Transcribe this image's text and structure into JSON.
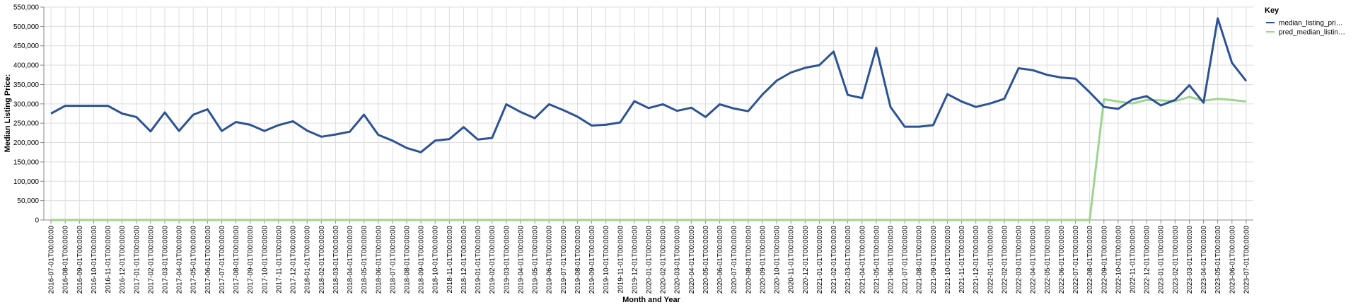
{
  "chart_data": {
    "type": "line",
    "xlabel": "Month and Year",
    "ylabel": "Median Listing Price:",
    "ylim": [
      0,
      550000
    ],
    "yticks": [
      "0",
      "50,000",
      "100,000",
      "150,000",
      "200,000",
      "250,000",
      "300,000",
      "350,000",
      "400,000",
      "450,000",
      "500,000",
      "550,000"
    ],
    "grid": true,
    "legend": {
      "title": "Key",
      "placement": "top-right"
    },
    "x": [
      "2016-07-01T00:00:00",
      "2016-08-01T00:00:00",
      "2016-09-01T00:00:00",
      "2016-10-01T00:00:00",
      "2016-11-01T00:00:00",
      "2016-12-01T00:00:00",
      "2017-01-01T00:00:00",
      "2017-02-01T00:00:00",
      "2017-03-01T00:00:00",
      "2017-04-01T00:00:00",
      "2017-05-01T00:00:00",
      "2017-06-01T00:00:00",
      "2017-07-01T00:00:00",
      "2017-08-01T00:00:00",
      "2017-09-01T00:00:00",
      "2017-10-01T00:00:00",
      "2017-11-01T00:00:00",
      "2017-12-01T00:00:00",
      "2018-01-01T00:00:00",
      "2018-02-01T00:00:00",
      "2018-03-01T00:00:00",
      "2018-04-01T00:00:00",
      "2018-05-01T00:00:00",
      "2018-06-01T00:00:00",
      "2018-07-01T00:00:00",
      "2018-08-01T00:00:00",
      "2018-09-01T00:00:00",
      "2018-10-01T00:00:00",
      "2018-11-01T00:00:00",
      "2018-12-01T00:00:00",
      "2019-01-01T00:00:00",
      "2019-02-01T00:00:00",
      "2019-03-01T00:00:00",
      "2019-04-01T00:00:00",
      "2019-05-01T00:00:00",
      "2019-06-01T00:00:00",
      "2019-07-01T00:00:00",
      "2019-08-01T00:00:00",
      "2019-09-01T00:00:00",
      "2019-10-01T00:00:00",
      "2019-11-01T00:00:00",
      "2019-12-01T00:00:00",
      "2020-01-01T00:00:00",
      "2020-02-01T00:00:00",
      "2020-03-01T00:00:00",
      "2020-04-01T00:00:00",
      "2020-05-01T00:00:00",
      "2020-06-01T00:00:00",
      "2020-07-01T00:00:00",
      "2020-08-01T00:00:00",
      "2020-09-01T00:00:00",
      "2020-10-01T00:00:00",
      "2020-11-01T00:00:00",
      "2020-12-01T00:00:00",
      "2021-01-01T00:00:00",
      "2021-02-01T00:00:00",
      "2021-03-01T00:00:00",
      "2021-04-01T00:00:00",
      "2021-05-01T00:00:00",
      "2021-06-01T00:00:00",
      "2021-07-01T00:00:00",
      "2021-08-01T00:00:00",
      "2021-09-01T00:00:00",
      "2021-10-01T00:00:00",
      "2021-11-01T00:00:00",
      "2021-12-01T00:00:00",
      "2022-01-01T00:00:00",
      "2022-02-01T00:00:00",
      "2022-03-01T00:00:00",
      "2022-04-01T00:00:00",
      "2022-05-01T00:00:00",
      "2022-06-01T00:00:00",
      "2022-07-01T00:00:00",
      "2022-08-01T00:00:00",
      "2022-09-01T00:00:00",
      "2022-10-01T00:00:00",
      "2022-11-01T00:00:00",
      "2022-12-01T00:00:00",
      "2023-01-01T00:00:00",
      "2023-02-01T00:00:00",
      "2023-03-01T00:00:00",
      "2023-04-01T00:00:00",
      "2023-05-01T00:00:00",
      "2023-06-01T00:00:00",
      "2023-07-01T00:00:00"
    ],
    "series": [
      {
        "name": "median_listing_pri…",
        "color": "#2c5296",
        "values": [
          275000,
          295000,
          295000,
          295000,
          295000,
          275000,
          266000,
          229000,
          278000,
          230000,
          272000,
          286000,
          230000,
          253000,
          246000,
          230000,
          245000,
          255000,
          231000,
          215000,
          221000,
          228000,
          272000,
          220000,
          205000,
          186000,
          175000,
          205000,
          209000,
          240000,
          208000,
          212000,
          299000,
          279000,
          263000,
          299000,
          284000,
          267000,
          244000,
          246000,
          252000,
          307000,
          289000,
          299000,
          282000,
          290000,
          266000,
          299000,
          288000,
          281000,
          324000,
          360000,
          381000,
          393000,
          400000,
          435000,
          323000,
          315000,
          445000,
          292000,
          241000,
          241000,
          245000,
          325000,
          306000,
          292000,
          301000,
          313000,
          392000,
          387000,
          375000,
          368000,
          365000,
          330000,
          292000,
          287000,
          311000,
          320000,
          296000,
          310000,
          348000,
          303000,
          521000,
          406000,
          359000
        ]
      },
      {
        "name": "pred_median_listin…",
        "color": "#9dd58e",
        "values": [
          0,
          0,
          0,
          0,
          0,
          0,
          0,
          0,
          0,
          0,
          0,
          0,
          0,
          0,
          0,
          0,
          0,
          0,
          0,
          0,
          0,
          0,
          0,
          0,
          0,
          0,
          0,
          0,
          0,
          0,
          0,
          0,
          0,
          0,
          0,
          0,
          0,
          0,
          0,
          0,
          0,
          0,
          0,
          0,
          0,
          0,
          0,
          0,
          0,
          0,
          0,
          0,
          0,
          0,
          0,
          0,
          0,
          0,
          0,
          0,
          0,
          0,
          0,
          0,
          0,
          0,
          0,
          0,
          0,
          0,
          0,
          0,
          0,
          0,
          312000,
          306000,
          301000,
          310000,
          309000,
          307000,
          318000,
          308000,
          313000,
          310000,
          306000
        ]
      }
    ]
  }
}
